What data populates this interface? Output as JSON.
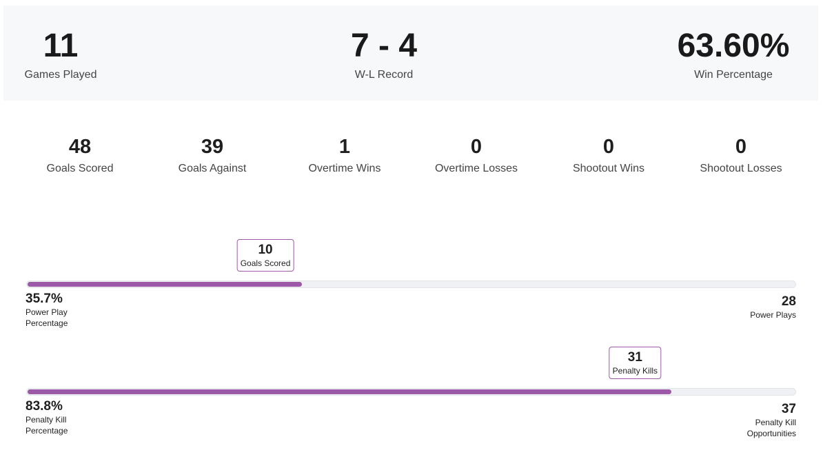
{
  "summary": [
    {
      "value": "11",
      "label": "Games Played"
    },
    {
      "value": "7 - 4",
      "label": "W-L Record"
    },
    {
      "value": "63.60%",
      "label": "Win Percentage"
    }
  ],
  "stats": [
    {
      "value": "48",
      "label": "Goals Scored"
    },
    {
      "value": "39",
      "label": "Goals Against"
    },
    {
      "value": "1",
      "label": "Overtime Wins"
    },
    {
      "value": "0",
      "label": "Overtime Losses"
    },
    {
      "value": "0",
      "label": "Shootout Wins"
    },
    {
      "value": "0",
      "label": "Shootout Losses"
    }
  ],
  "power_play": {
    "percent": 35.7,
    "percent_text": "35.7%",
    "percent_label_1": "Power Play",
    "percent_label_2": "Percentage",
    "callout_value": "10",
    "callout_label": "Goals Scored",
    "total": "28",
    "total_label_1": "Power Plays",
    "total_label_2": ""
  },
  "penalty_kill": {
    "percent": 83.8,
    "percent_text": "83.8%",
    "percent_label_1": "Penalty Kill",
    "percent_label_2": "Percentage",
    "callout_value": "31",
    "callout_label": "Penalty Kills",
    "total": "37",
    "total_label_1": "Penalty Kill",
    "total_label_2": "Opportunities"
  },
  "colors": {
    "accent": "#9b59a8",
    "panel": "#f7f8fa"
  }
}
